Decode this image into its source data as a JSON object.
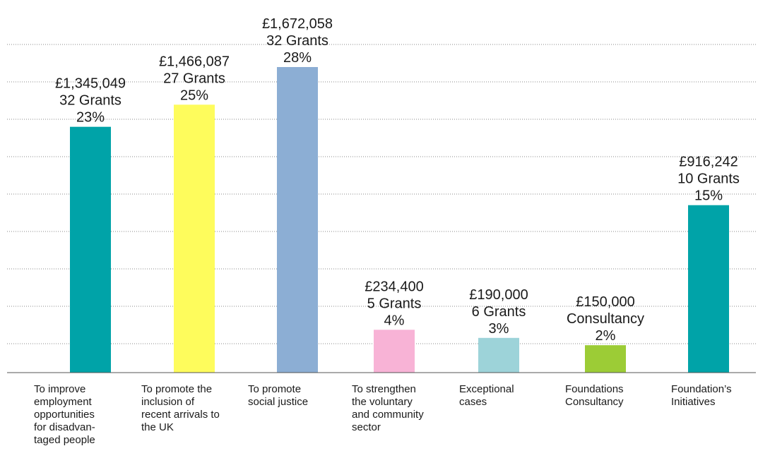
{
  "chart_data": {
    "type": "bar",
    "title": "",
    "xlabel": "",
    "ylabel": "",
    "ylim": [
      0,
      1800000
    ],
    "grid": true,
    "grid_style": "dotted",
    "legend": "none",
    "categories": [
      [
        "To improve",
        "employment",
        "opportunities",
        "for disadvan-",
        "taged people"
      ],
      [
        "To promote the",
        "inclusion of",
        "recent arrivals to",
        "the UK"
      ],
      [
        "To promote",
        "social justice"
      ],
      [
        "To strengthen",
        "the voluntary",
        "and community",
        "sector"
      ],
      [
        "Exceptional",
        "cases"
      ],
      [
        "Foundations",
        "Consultancy"
      ],
      [
        "Foundation’s",
        "Initiatives"
      ]
    ],
    "values": [
      1345049,
      1466087,
      1672058,
      234400,
      190000,
      150000,
      916242
    ],
    "colors": [
      "#00a3a8",
      "#fefc5c",
      "#8caed4",
      "#f8b3d6",
      "#9dd3d9",
      "#9ccc36",
      "#00a3a8"
    ],
    "bar_labels": [
      [
        "£1,345,049",
        "32 Grants",
        "23%"
      ],
      [
        "£1,466,087",
        "27 Grants",
        "25%"
      ],
      [
        "£1,672,058",
        "32 Grants",
        "28%"
      ],
      [
        "£234,400",
        "5 Grants",
        "4%"
      ],
      [
        "£190,000",
        "6 Grants",
        "3%"
      ],
      [
        "£150,000",
        "Consultancy",
        "2%"
      ],
      [
        "£916,242",
        "10 Grants",
        "15%"
      ]
    ]
  }
}
